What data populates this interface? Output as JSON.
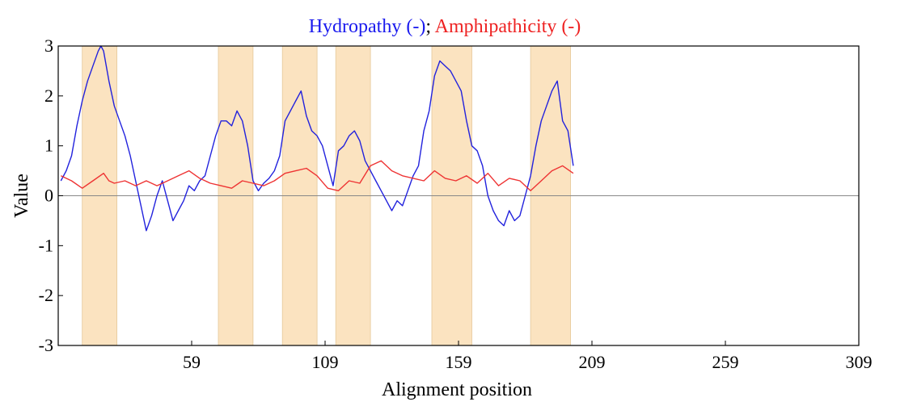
{
  "chart_data": {
    "type": "line",
    "title": {
      "parts": [
        {
          "text": "Hydropathy (-)",
          "color": "#1a1aee"
        },
        {
          "text": "; ",
          "color": "#000000"
        },
        {
          "text": "Amphipathicity (-)",
          "color": "#ee2222"
        }
      ]
    },
    "xlabel": "Alignment position",
    "ylabel": "Value",
    "xlim": [
      9,
      309
    ],
    "ylim": [
      -3,
      3
    ],
    "xticks": [
      {
        "value": 59,
        "label": "59"
      },
      {
        "value": 109,
        "label": "109"
      },
      {
        "value": 159,
        "label": "159"
      },
      {
        "value": 209,
        "label": "209"
      },
      {
        "value": 259,
        "label": "259"
      },
      {
        "value": 309,
        "label": "309"
      }
    ],
    "yticks": [
      {
        "value": 3,
        "label": "3"
      },
      {
        "value": 2,
        "label": "2"
      },
      {
        "value": 1,
        "label": "1"
      },
      {
        "value": 0,
        "label": "0"
      },
      {
        "value": -1,
        "label": "-1"
      },
      {
        "value": -2,
        "label": "-2"
      },
      {
        "value": -3,
        "label": "-3"
      }
    ],
    "zero_line": true,
    "highlight_color": "#fbe3c0",
    "highlight_regions": [
      [
        18,
        31
      ],
      [
        69,
        82
      ],
      [
        93,
        106
      ],
      [
        113,
        126
      ],
      [
        149,
        164
      ],
      [
        186,
        201
      ]
    ],
    "series": [
      {
        "color": "#2222dd",
        "x": [
          10,
          12,
          14,
          16,
          18,
          20,
          22,
          24,
          25,
          26,
          28,
          30,
          32,
          34,
          36,
          38,
          40,
          42,
          44,
          46,
          48,
          50,
          52,
          54,
          56,
          58,
          60,
          62,
          64,
          66,
          68,
          70,
          72,
          74,
          76,
          78,
          80,
          82,
          84,
          86,
          88,
          90,
          92,
          94,
          96,
          98,
          100,
          102,
          104,
          106,
          108,
          110,
          112,
          114,
          116,
          118,
          120,
          122,
          124,
          126,
          128,
          130,
          132,
          134,
          136,
          138,
          140,
          142,
          144,
          146,
          148,
          150,
          152,
          154,
          156,
          158,
          160,
          162,
          164,
          166,
          168,
          170,
          172,
          174,
          176,
          178,
          180,
          182,
          184,
          186,
          188,
          190,
          192,
          194,
          196,
          198,
          200,
          202
        ],
        "y": [
          0.3,
          0.5,
          0.8,
          1.4,
          1.9,
          2.3,
          2.6,
          2.9,
          3.0,
          2.9,
          2.3,
          1.8,
          1.5,
          1.2,
          0.8,
          0.3,
          -0.2,
          -0.7,
          -0.4,
          0.0,
          0.3,
          -0.1,
          -0.5,
          -0.3,
          -0.1,
          0.2,
          0.1,
          0.3,
          0.4,
          0.8,
          1.2,
          1.5,
          1.5,
          1.4,
          1.7,
          1.5,
          1.0,
          0.3,
          0.1,
          0.25,
          0.35,
          0.5,
          0.8,
          1.5,
          1.7,
          1.9,
          2.1,
          1.6,
          1.3,
          1.2,
          1.0,
          0.6,
          0.2,
          0.9,
          1.0,
          1.2,
          1.3,
          1.1,
          0.7,
          0.5,
          0.3,
          0.1,
          -0.1,
          -0.3,
          -0.1,
          -0.2,
          0.1,
          0.4,
          0.6,
          1.3,
          1.7,
          2.4,
          2.7,
          2.6,
          2.5,
          2.3,
          2.1,
          1.5,
          1.0,
          0.9,
          0.6,
          0.0,
          -0.3,
          -0.5,
          -0.6,
          -0.3,
          -0.5,
          -0.4,
          0.0,
          0.4,
          1.0,
          1.5,
          1.8,
          2.1,
          2.3,
          1.5,
          1.3,
          0.6
        ]
      },
      {
        "color": "#ee3333",
        "x": [
          10,
          14,
          18,
          22,
          26,
          28,
          30,
          34,
          38,
          42,
          46,
          50,
          54,
          58,
          62,
          66,
          70,
          74,
          78,
          82,
          86,
          90,
          94,
          98,
          102,
          106,
          110,
          114,
          118,
          122,
          126,
          130,
          134,
          138,
          142,
          146,
          150,
          154,
          158,
          162,
          166,
          170,
          174,
          178,
          182,
          186,
          190,
          194,
          198,
          202
        ],
        "y": [
          0.4,
          0.3,
          0.15,
          0.3,
          0.45,
          0.3,
          0.25,
          0.3,
          0.2,
          0.3,
          0.2,
          0.3,
          0.4,
          0.5,
          0.35,
          0.25,
          0.2,
          0.15,
          0.3,
          0.25,
          0.2,
          0.3,
          0.45,
          0.5,
          0.55,
          0.4,
          0.15,
          0.1,
          0.3,
          0.25,
          0.6,
          0.7,
          0.5,
          0.4,
          0.35,
          0.3,
          0.5,
          0.35,
          0.3,
          0.4,
          0.25,
          0.45,
          0.2,
          0.35,
          0.3,
          0.1,
          0.3,
          0.5,
          0.6,
          0.45
        ]
      }
    ]
  }
}
